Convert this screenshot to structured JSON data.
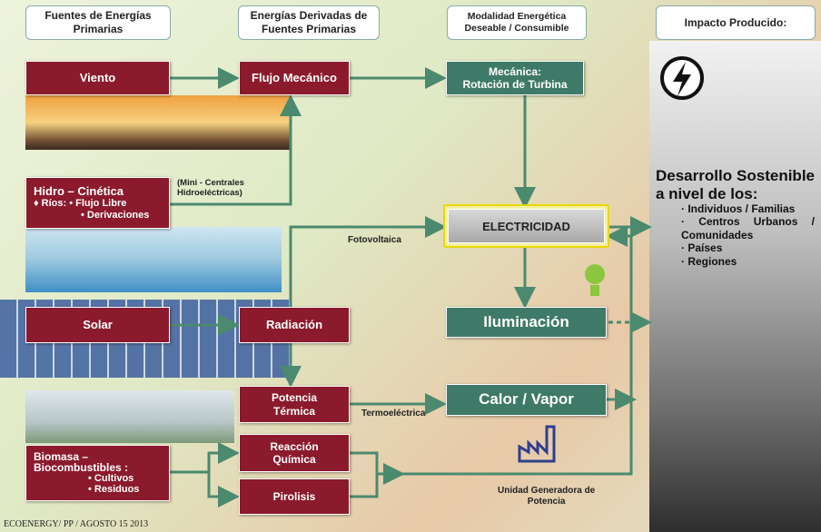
{
  "headers": [
    "Fuentes de Energías Primarias",
    "Energías Derivadas de Fuentes Primarias",
    "Modalidad Energética Deseable / Consumible",
    "Impacto Producido:"
  ],
  "nodes": {
    "viento": "Viento",
    "flujo": "Flujo Mecánico",
    "mecanica": [
      "Mecánica:",
      "Rotación de Turbina"
    ],
    "hidro": [
      "Hidro – Cinética",
      "♦ Ríos: • Flujo Libre",
      "• Derivaciones"
    ],
    "solar": "Solar",
    "radiacion": "Radiación",
    "potencia": [
      "Potencia",
      "Térmica"
    ],
    "biomasa": [
      "Biomasa –",
      "Biocombustibles :",
      "• Cultivos",
      "• Residuos"
    ],
    "reaccion": [
      "Reacción",
      "Química"
    ],
    "pirolisis": "Pirolisis",
    "electricidad": "ELECTRICIDAD",
    "iluminacion": "Iluminación",
    "calor": "Calor / Vapor"
  },
  "labels": {
    "mini": [
      "(Mini - Centrales",
      "Hidroeléctricas)"
    ],
    "fotovoltaica": "Fotovoltaica",
    "termoelectrica": "Termoeléctrica",
    "unidad": [
      "Unidad Generadora de",
      "Potencia"
    ]
  },
  "impact": {
    "title": "Desarrollo Sostenible a nivel de los:",
    "items": [
      "· Individuos / Familias",
      "· Centros Urbanos / Comunidades",
      "· Países",
      "· Regiones"
    ]
  },
  "footer": "ECOENERGY/ PP / AGOSTO 15 2013"
}
